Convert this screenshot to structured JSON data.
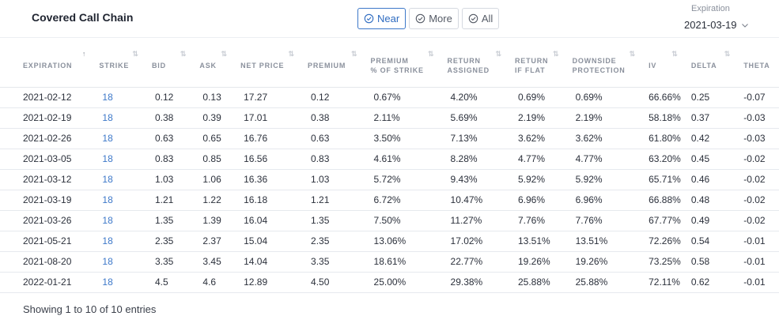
{
  "header": {
    "title": "Covered Call Chain",
    "buttons": [
      {
        "label": "Near",
        "active": true,
        "icon": "check-circle-icon"
      },
      {
        "label": "More",
        "active": false,
        "icon": "check-circle-icon"
      },
      {
        "label": "All",
        "active": false,
        "icon": "check-circle-icon"
      }
    ],
    "expiration_label": "Expiration",
    "expiration_value": "2021-03-19"
  },
  "table": {
    "columns": [
      {
        "label": "EXPIRATION",
        "sort": "↑"
      },
      {
        "label": "STRIKE",
        "sort": "⇅"
      },
      {
        "label": "BID",
        "sort": "⇅"
      },
      {
        "label": "ASK",
        "sort": "⇅"
      },
      {
        "label": "NET PRICE",
        "sort": "⇅"
      },
      {
        "label": "PREMIUM",
        "sort": "⇅"
      },
      {
        "label": "PREMIUM\n% OF STRIKE",
        "sort": "⇅"
      },
      {
        "label": "RETURN\nASSIGNED",
        "sort": "⇅"
      },
      {
        "label": "RETURN\nIF FLAT",
        "sort": "⇅"
      },
      {
        "label": "DOWNSIDE\nPROTECTION",
        "sort": "⇅"
      },
      {
        "label": "IV",
        "sort": "⇅"
      },
      {
        "label": "DELTA",
        "sort": "⇅"
      },
      {
        "label": "THETA",
        "sort": ""
      }
    ],
    "rows": [
      [
        "2021-02-12",
        "18",
        "0.12",
        "0.13",
        "17.27",
        "0.12",
        "0.67%",
        "4.20%",
        "0.69%",
        "0.69%",
        "66.66%",
        "0.25",
        "-0.07"
      ],
      [
        "2021-02-19",
        "18",
        "0.38",
        "0.39",
        "17.01",
        "0.38",
        "2.11%",
        "5.69%",
        "2.19%",
        "2.19%",
        "58.18%",
        "0.37",
        "-0.03"
      ],
      [
        "2021-02-26",
        "18",
        "0.63",
        "0.65",
        "16.76",
        "0.63",
        "3.50%",
        "7.13%",
        "3.62%",
        "3.62%",
        "61.80%",
        "0.42",
        "-0.03"
      ],
      [
        "2021-03-05",
        "18",
        "0.83",
        "0.85",
        "16.56",
        "0.83",
        "4.61%",
        "8.28%",
        "4.77%",
        "4.77%",
        "63.20%",
        "0.45",
        "-0.02"
      ],
      [
        "2021-03-12",
        "18",
        "1.03",
        "1.06",
        "16.36",
        "1.03",
        "5.72%",
        "9.43%",
        "5.92%",
        "5.92%",
        "65.71%",
        "0.46",
        "-0.02"
      ],
      [
        "2021-03-19",
        "18",
        "1.21",
        "1.22",
        "16.18",
        "1.21",
        "6.72%",
        "10.47%",
        "6.96%",
        "6.96%",
        "66.88%",
        "0.48",
        "-0.02"
      ],
      [
        "2021-03-26",
        "18",
        "1.35",
        "1.39",
        "16.04",
        "1.35",
        "7.50%",
        "11.27%",
        "7.76%",
        "7.76%",
        "67.77%",
        "0.49",
        "-0.02"
      ],
      [
        "2021-05-21",
        "18",
        "2.35",
        "2.37",
        "15.04",
        "2.35",
        "13.06%",
        "17.02%",
        "13.51%",
        "13.51%",
        "72.26%",
        "0.54",
        "-0.01"
      ],
      [
        "2021-08-20",
        "18",
        "3.35",
        "3.45",
        "14.04",
        "3.35",
        "18.61%",
        "22.77%",
        "19.26%",
        "19.26%",
        "73.25%",
        "0.58",
        "-0.01"
      ],
      [
        "2022-01-21",
        "18",
        "4.5",
        "4.6",
        "12.89",
        "4.50",
        "25.00%",
        "29.38%",
        "25.88%",
        "25.88%",
        "72.11%",
        "0.62",
        "-0.01"
      ]
    ]
  },
  "footer": {
    "entries_text": "Showing 1 to 10 of 10 entries"
  },
  "colors": {
    "accent": "#3d78c9",
    "header_text": "#8a909c"
  }
}
